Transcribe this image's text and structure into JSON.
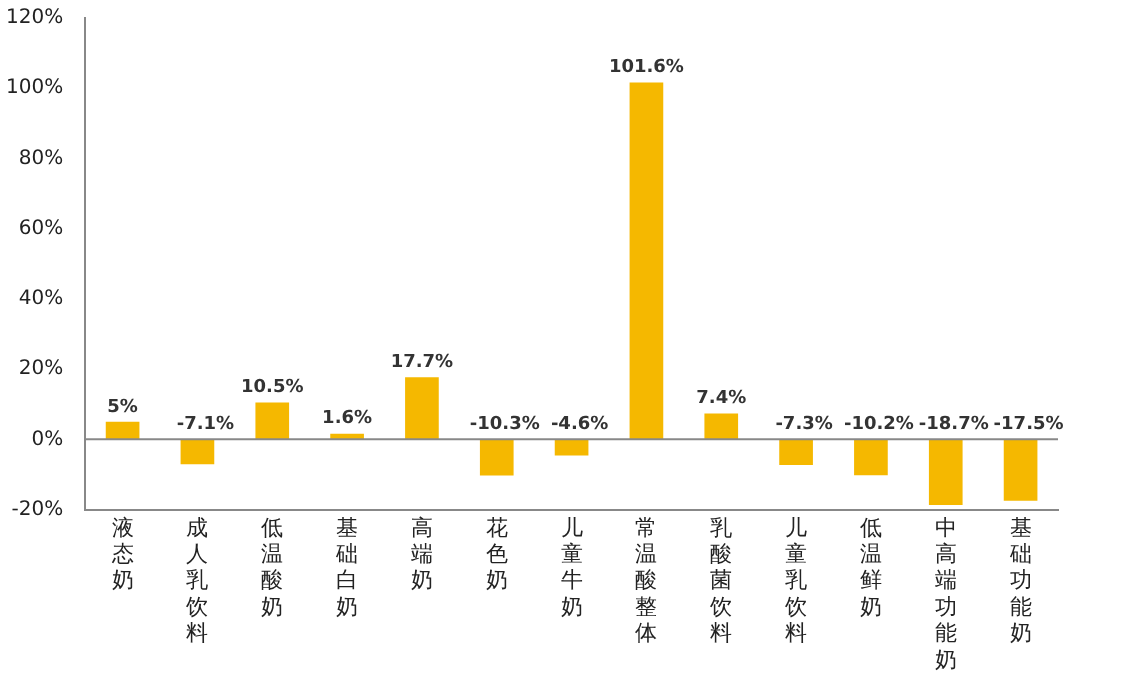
{
  "chart_data": {
    "type": "bar",
    "categories": [
      "液态奶",
      "成人乳饮料",
      "低温酸奶",
      "基础白奶",
      "高端奶",
      "花色奶",
      "儿童牛奶",
      "常温酸整体",
      "乳酸菌饮料",
      "儿童乳饮料",
      "低温鲜奶",
      "中高端功能奶",
      "基础功能奶"
    ],
    "values": [
      5,
      -7.1,
      10.5,
      1.6,
      17.7,
      -10.3,
      -4.6,
      101.6,
      7.4,
      -7.3,
      -10.2,
      -18.7,
      -17.5
    ],
    "value_labels": [
      "5%",
      "-7.1%",
      "10.5%",
      "1.6%",
      "17.7%",
      "-10.3%",
      "-4.6%",
      "101.6%",
      "7.4%",
      "-7.3%",
      "-10.2%",
      "-18.7%",
      "-17.5%"
    ],
    "color": "#f5b800",
    "ylim": [
      -20,
      120
    ],
    "yticks": [
      {
        "value": -20,
        "label": "-20%"
      },
      {
        "value": 0,
        "label": "0%"
      },
      {
        "value": 20,
        "label": "20%"
      },
      {
        "value": 40,
        "label": "40%"
      },
      {
        "value": 60,
        "label": "60%"
      },
      {
        "value": 80,
        "label": "80%"
      },
      {
        "value": 100,
        "label": "100%"
      },
      {
        "value": 120,
        "label": "120%"
      }
    ],
    "legend": false
  }
}
